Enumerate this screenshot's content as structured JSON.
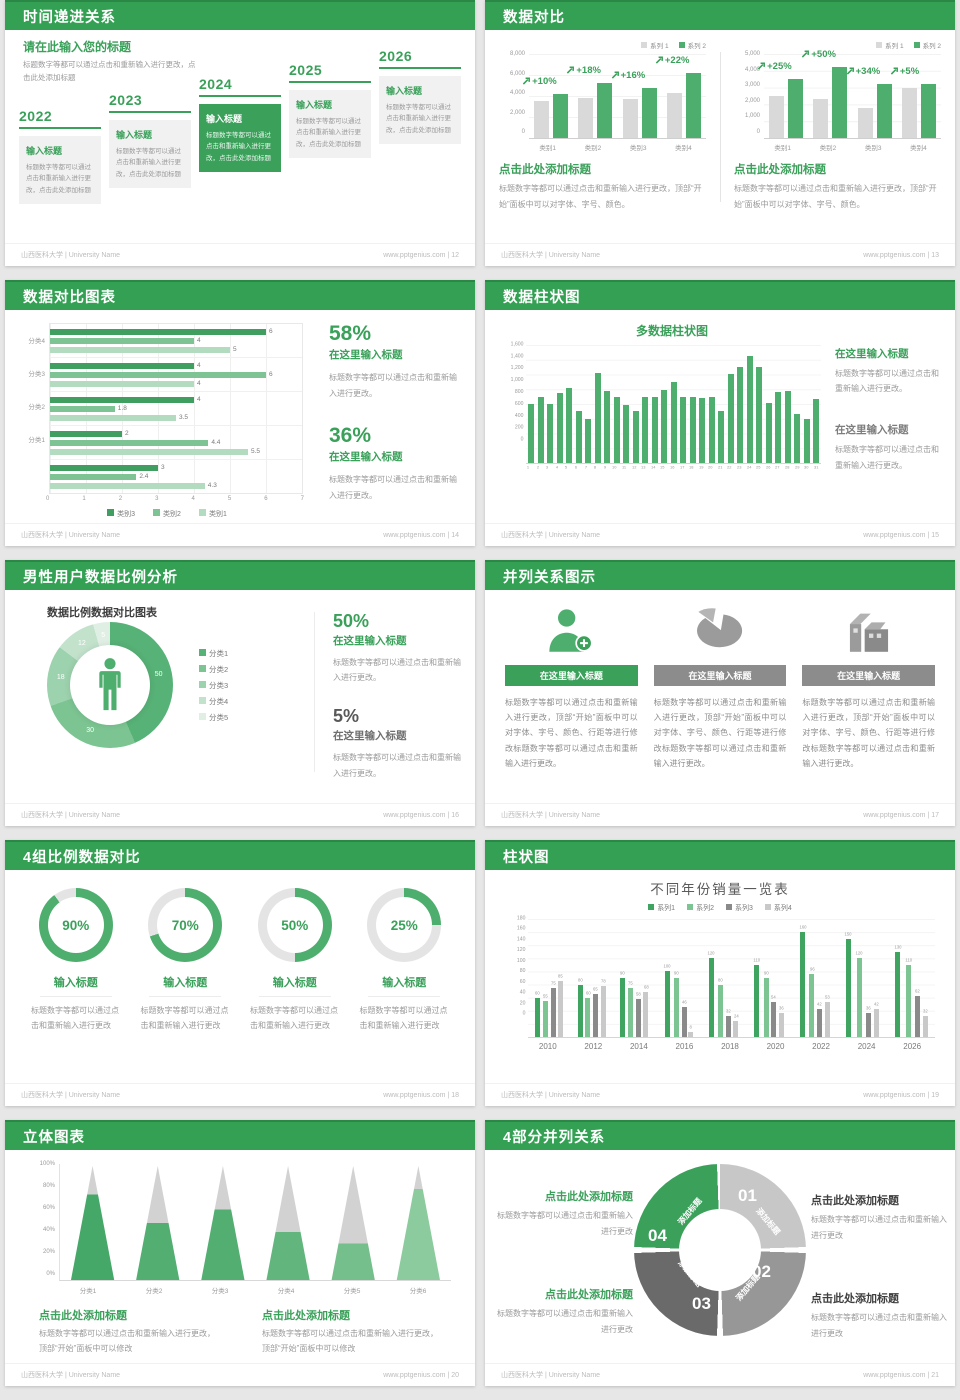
{
  "footer": {
    "org": "山西医科大学 | University Name",
    "site": "www.pptgenius.com",
    "sep": "|"
  },
  "colors": {
    "header_green": "#33a053",
    "accent_green": "#3aa05a",
    "bar_green": "#4dae6e",
    "bar_gray": "#d9d9d9"
  },
  "slides": {
    "s12": {
      "title": "时间递进关系",
      "page": "12",
      "intro_title": "请在此输入您的标题",
      "intro_body": "标题数字等都可以通过点击和重新输入进行更改，点击此处添加标题",
      "steps": [
        {
          "year": "2022",
          "box_title": "输入标题",
          "box_body": "标题数字等都可以通过点击和重新输入进行更改，点击此处添加标题",
          "active": false
        },
        {
          "year": "2023",
          "box_title": "输入标题",
          "box_body": "标题数字等都可以通过点击和重新输入进行更改，点击此处添加标题",
          "active": false
        },
        {
          "year": "2024",
          "box_title": "输入标题",
          "box_body": "标题数字等都可以通过点击和重新输入进行更改，点击此处添加标题",
          "active": true
        },
        {
          "year": "2025",
          "box_title": "输入标题",
          "box_body": "标题数字等都可以通过点击和重新输入进行更改，点击此处添加标题",
          "active": false
        },
        {
          "year": "2026",
          "box_title": "输入标题",
          "box_body": "标题数字等都可以通过点击和重新输入进行更改，点击此处添加标题",
          "active": false
        }
      ]
    },
    "s13": {
      "title": "数据对比",
      "page": "13",
      "blocks": [
        {
          "heading": "点击此处添加标题",
          "body": "标题数字等都可以通过点击和重新输入进行更改，顶部“开始”面板中可以对字体、字号、颜色。"
        },
        {
          "heading": "点击此处添加标题",
          "body": "标题数字等都可以通过点击和重新输入进行更改，顶部“开始”面板中可以对字体、字号、颜色。"
        }
      ]
    },
    "s14": {
      "title": "数据对比图表",
      "page": "14",
      "stats": [
        {
          "pct": "58%",
          "heading": "在这里输入标题",
          "body": "标题数字等都可以通过点击和重新输入进行更改。"
        },
        {
          "pct": "36%",
          "heading": "在这里输入标题",
          "body": "标题数字等都可以通过点击和重新输入进行更改。"
        }
      ]
    },
    "s15": {
      "title": "数据柱状图",
      "page": "15",
      "blocks": [
        {
          "heading": "在这里输入标题",
          "green": true,
          "body": "标题数字等都可以通过点击和重新输入进行更改。"
        },
        {
          "heading": "在这里输入标题",
          "green": false,
          "body": "标题数字等都可以通过点击和重新输入进行更改。"
        }
      ]
    },
    "s16": {
      "title": "男性用户数据比例分析",
      "page": "16",
      "stats": [
        {
          "pct": "50%",
          "heading": "在这里输入标题",
          "green": true,
          "body": "标题数字等都可以通过点击和重新输入进行更改。"
        },
        {
          "pct": "5%",
          "heading": "在这里输入标题",
          "green": false,
          "body": "标题数字等都可以通过点击和重新输入进行更改。"
        }
      ]
    },
    "s17": {
      "title": "并列关系图示",
      "page": "17",
      "columns": [
        {
          "icon": "nurse-add-icon",
          "banner": "在这里输入标题",
          "banner_color": "#3aa05a",
          "body": "标题数字等都可以通过点击和重新输入进行更改，顶部“开始”面板中可以对字体、字号、颜色、行距等进行修改标题数字等都可以通过点击和重新输入进行更改。"
        },
        {
          "icon": "pie-3d-icon",
          "banner": "在这里输入标题",
          "banner_color": "#8c8c8c",
          "body": "标题数字等都可以通过点击和重新输入进行更改，顶部“开始”面板中可以对字体、字号、颜色、行距等进行修改标题数字等都可以通过点击和重新输入进行更改。"
        },
        {
          "icon": "building-icon",
          "banner": "在这里输入标题",
          "banner_color": "#8c8c8c",
          "body": "标题数字等都可以通过点击和重新输入进行更改，顶部“开始”面板中可以对字体、字号、颜色、行距等进行修改标题数字等都可以通过点击和重新输入进行更改。"
        }
      ]
    },
    "s18": {
      "title": "4组比例数据对比",
      "page": "18",
      "items": [
        {
          "label": "90%",
          "heading": "输入标题",
          "body": "标题数字等都可以通过点击和重新输入进行更改"
        },
        {
          "label": "70%",
          "heading": "输入标题",
          "body": "标题数字等都可以通过点击和重新输入进行更改"
        },
        {
          "label": "50%",
          "heading": "输入标题",
          "body": "标题数字等都可以通过点击和重新输入进行更改"
        },
        {
          "label": "25%",
          "heading": "输入标题",
          "body": "标题数字等都可以通过点击和重新输入进行更改"
        }
      ]
    },
    "s19": {
      "title": "柱状图",
      "page": "19"
    },
    "s20": {
      "title": "立体图表",
      "page": "20",
      "blocks": [
        {
          "heading": "点击此处添加标题",
          "body": "标题数字等都可以通过点击和重新输入进行更改，顶部“开始”面板中可以修改"
        },
        {
          "heading": "点击此处添加标题",
          "body": "标题数字等都可以通过点击和重新输入进行更改，顶部“开始”面板中可以修改"
        }
      ]
    },
    "s21": {
      "title": "4部分并列关系",
      "page": "21",
      "ring": {
        "segments": [
          {
            "num": "01",
            "label": "添加标题",
            "color": "#c7c7c7"
          },
          {
            "num": "02",
            "label": "添加标题",
            "color": "#979797"
          },
          {
            "num": "03",
            "label": "添加标题",
            "color": "#6a6a6a"
          },
          {
            "num": "04",
            "label": "添加标题",
            "color": "#3aa05a"
          }
        ]
      },
      "blocks": [
        {
          "heading": "点击此处添加标题",
          "green": true,
          "pos": "lt",
          "body": "标题数字等都可以通过点击和重新输入进行更改"
        },
        {
          "heading": "点击此处添加标题",
          "green": false,
          "pos": "rt",
          "body": "标题数字等都可以通过点击和重新输入进行更改"
        },
        {
          "heading": "点击此处添加标题",
          "green": true,
          "pos": "lb",
          "body": "标题数字等都可以通过点击和重新输入进行更改"
        },
        {
          "heading": "点击此处添加标题",
          "green": false,
          "pos": "rb",
          "body": "标题数字等都可以通过点击和重新输入进行更改"
        }
      ]
    }
  },
  "chart_data": [
    {
      "slide": "13",
      "type": "bar",
      "legend_position": "top-right",
      "grid": true,
      "ymax": 8000,
      "yticks": [
        "8,000",
        "6,000",
        "4,000",
        "2,000",
        "0"
      ],
      "categories": [
        "类别1",
        "类别2",
        "类别3",
        "类别4"
      ],
      "series": [
        {
          "name": "系列 1",
          "color": "#d9d9d9",
          "values": [
            3500,
            3800,
            3700,
            4300
          ]
        },
        {
          "name": "系列 2",
          "color": "#4dae6e",
          "values": [
            4200,
            5200,
            4800,
            6200
          ]
        }
      ],
      "growth_labels": [
        "+10%",
        "+18%",
        "+16%",
        "+22%"
      ]
    },
    {
      "slide": "13",
      "type": "bar",
      "legend_position": "top-right",
      "grid": true,
      "ymax": 5000,
      "yticks": [
        "5,000",
        "4,000",
        "3,000",
        "2,000",
        "1,000",
        "0"
      ],
      "categories": [
        "类别1",
        "类别2",
        "类别3",
        "类别4"
      ],
      "series": [
        {
          "name": "系列 1",
          "color": "#d9d9d9",
          "values": [
            2500,
            2300,
            1800,
            3000
          ]
        },
        {
          "name": "系列 2",
          "color": "#4dae6e",
          "values": [
            3500,
            4200,
            3200,
            3200
          ]
        }
      ],
      "growth_labels": [
        "+25%",
        "+50%",
        "+34%",
        "+5%"
      ]
    },
    {
      "slide": "14",
      "type": "bar-horizontal",
      "xmax": 7,
      "grid": true,
      "xticks": [
        "0",
        "1",
        "2",
        "3",
        "4",
        "5",
        "6",
        "7"
      ],
      "groups": [
        "分类4",
        "分类3",
        "分类2",
        "分类1",
        ""
      ],
      "series": [
        {
          "name": "类别3",
          "color": "#3f9e60",
          "values": [
            6,
            4,
            4,
            2,
            3
          ]
        },
        {
          "name": "类别2",
          "color": "#7ec394",
          "values": [
            4,
            6,
            1.8,
            4.4,
            2.4
          ]
        },
        {
          "name": "类别1",
          "color": "#b2dbbf",
          "values": [
            5,
            4,
            3.5,
            5.5,
            4.3
          ]
        }
      ]
    },
    {
      "slide": "15",
      "type": "bar",
      "title": "多数据柱状图",
      "ymax": 1600,
      "grid": true,
      "color": "#4dae6e",
      "yticks": [
        "1,600",
        "1,400",
        "1,200",
        "1,000",
        "800",
        "600",
        "400",
        "200",
        "0"
      ],
      "x": [
        "1",
        "2",
        "3",
        "4",
        "5",
        "6",
        "7",
        "8",
        "9",
        "10",
        "11",
        "12",
        "13",
        "14",
        "15",
        "16",
        "17",
        "18",
        "19",
        "20",
        "21",
        "22",
        "23",
        "24",
        "25",
        "26",
        "27",
        "28",
        "29",
        "30",
        "31"
      ],
      "values": [
        800,
        900,
        800,
        950,
        1020,
        700,
        600,
        1220,
        980,
        890,
        790,
        700,
        890,
        900,
        990,
        1100,
        900,
        900,
        880,
        900,
        700,
        1200,
        1300,
        1450,
        1300,
        810,
        960,
        970,
        660,
        600,
        870
      ]
    },
    {
      "slide": "16",
      "type": "pie",
      "title": "数据比例数据对比图表",
      "labels": [
        "分类1",
        "分类2",
        "分类3",
        "分类4",
        "分类5"
      ],
      "values": [
        50,
        30,
        18,
        12,
        5
      ],
      "colors": [
        "#57b277",
        "#7cc492",
        "#9dd2ae",
        "#c2e2cc",
        "#e0efe4"
      ]
    },
    {
      "slide": "18",
      "type": "gauge",
      "values": [
        90,
        70,
        50,
        25
      ],
      "color": "#4dae6e",
      "track": "#e4e4e4"
    },
    {
      "slide": "19",
      "type": "bar",
      "title": "不同年份销量一览表",
      "ymax": 180,
      "grid": true,
      "yticks": [
        "180",
        "160",
        "140",
        "120",
        "100",
        "80",
        "60",
        "40",
        "20",
        "0"
      ],
      "categories": [
        "2010",
        "2012",
        "2014",
        "2016",
        "2018",
        "2020",
        "2022",
        "2024",
        "2026"
      ],
      "series": [
        {
          "name": "系列1",
          "color": "#3fa45f",
          "values": [
            60,
            80,
            90,
            100,
            120,
            110,
            160,
            150,
            130
          ]
        },
        {
          "name": "系列2",
          "color": "#7cc492",
          "values": [
            55,
            60,
            75,
            90,
            80,
            90,
            96,
            120,
            110
          ]
        },
        {
          "name": "系列3",
          "color": "#8a8a8a",
          "values": [
            75,
            65,
            58,
            46,
            32,
            54,
            42,
            36,
            62
          ]
        },
        {
          "name": "系列4",
          "color": "#c9c9c9",
          "values": [
            85,
            78,
            68,
            8,
            24,
            36,
            53,
            42,
            32
          ]
        }
      ]
    },
    {
      "slide": "20",
      "type": "cone",
      "categories": [
        "分类1",
        "分类2",
        "分类3",
        "分类4",
        "分类5",
        "分类6"
      ],
      "values_pct": [
        75,
        50,
        62,
        42,
        32,
        80
      ],
      "colors": [
        "#46a868",
        "#52ae71",
        "#52ae71",
        "#62b67d",
        "#74bf8b",
        "#8bcb9d"
      ],
      "yticks": [
        "100%",
        "80%",
        "60%",
        "40%",
        "20%",
        "0%"
      ]
    }
  ]
}
